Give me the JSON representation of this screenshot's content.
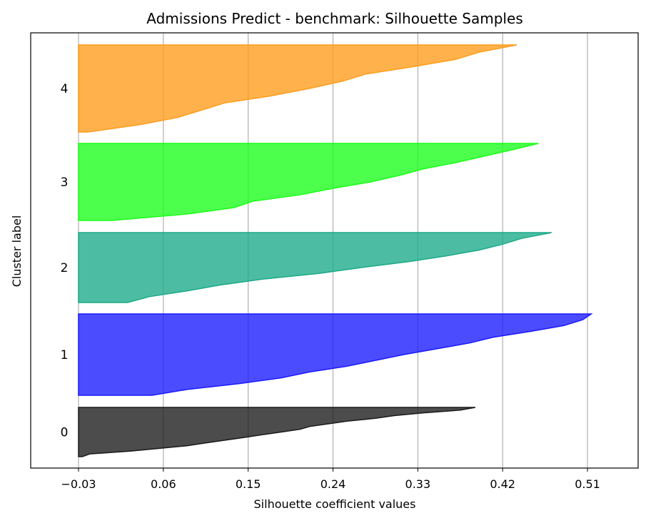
{
  "chart_data": {
    "type": "area",
    "title": "Admissions Predict - benchmark: Silhouette Samples",
    "xlabel": "Silhouette coefficient values",
    "ylabel": "Cluster label",
    "xticks": [
      -0.03,
      0.06,
      0.15,
      0.24,
      0.33,
      0.42,
      0.51
    ],
    "xtick_labels": [
      "−0.03",
      "0.06",
      "0.15",
      "0.24",
      "0.33",
      "0.42",
      "0.51"
    ],
    "xlim": [
      -0.077,
      0.564
    ],
    "grid": "x",
    "clusters": [
      {
        "label": "0",
        "color": "#1a1a1a",
        "silhouette_sorted": [
          -0.026,
          -0.018,
          0.025,
          0.055,
          0.085,
          0.105,
          0.125,
          0.145,
          0.165,
          0.185,
          0.205,
          0.215,
          0.235,
          0.255,
          0.285,
          0.305,
          0.335,
          0.375,
          0.391
        ]
      },
      {
        "label": "1",
        "color": "#1a1aff",
        "silhouette_sorted": [
          0.048,
          0.085,
          0.14,
          0.185,
          0.215,
          0.255,
          0.285,
          0.315,
          0.35,
          0.385,
          0.41,
          0.45,
          0.485,
          0.505,
          0.514
        ]
      },
      {
        "label": "2",
        "color": "#1aaa88",
        "silhouette_sorted": [
          0.022,
          0.045,
          0.085,
          0.12,
          0.165,
          0.225,
          0.27,
          0.32,
          0.36,
          0.395,
          0.42,
          0.44,
          0.472
        ]
      },
      {
        "label": "3",
        "color": "#1aff1a",
        "silhouette_sorted": [
          0.005,
          0.085,
          0.135,
          0.155,
          0.205,
          0.24,
          0.28,
          0.31,
          0.335,
          0.37,
          0.4,
          0.43,
          0.458
        ]
      },
      {
        "label": "4",
        "color": "#ff9c1a",
        "silhouette_sorted": [
          -0.02,
          0.035,
          0.075,
          0.1,
          0.125,
          0.175,
          0.215,
          0.25,
          0.275,
          0.325,
          0.37,
          0.395,
          0.435
        ]
      }
    ]
  }
}
